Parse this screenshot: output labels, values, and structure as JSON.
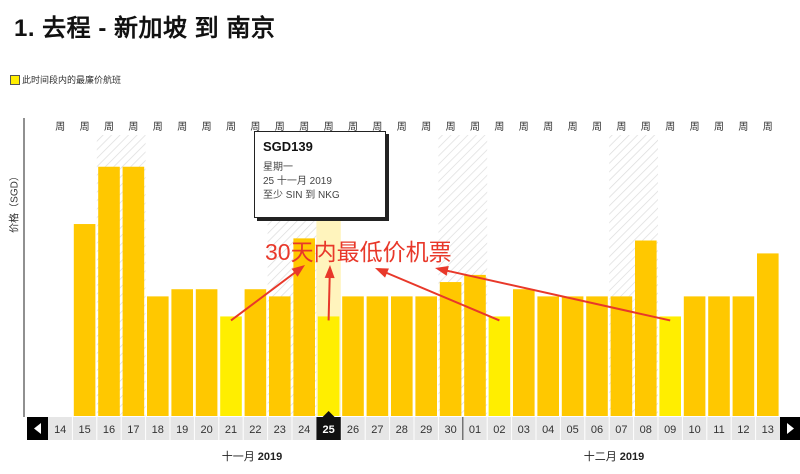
{
  "page": {
    "title": "1. 去程 - 新加坡 到 南京",
    "legend_label": "此时间段内的最廉价航班",
    "annotation": "30天内最低价机票",
    "colors": {
      "bar": "#ffc800",
      "bar_cheapest": "#ffee00",
      "weekend_highlight": "#fff4bd",
      "annotation": "#e8382a",
      "nav": "#000000"
    },
    "nav_icons": [
      "arrow-left-icon",
      "arrow-right-icon"
    ]
  },
  "tooltip": {
    "price": "SGD139",
    "weekday": "星期一",
    "date": "25 十一月 2019",
    "route": "至少 SIN 到 NKG"
  },
  "months": [
    {
      "name": "十一月",
      "year": "2019"
    },
    {
      "name": "十二月",
      "year": "2019"
    }
  ],
  "chart_data": {
    "type": "bar",
    "ylabel": "价格（SGD）",
    "week_label": "周",
    "categories": [
      "14",
      "15",
      "16",
      "17",
      "18",
      "19",
      "20",
      "21",
      "22",
      "23",
      "24",
      "25",
      "26",
      "27",
      "28",
      "29",
      "30",
      "01",
      "02",
      "03",
      "04",
      "05",
      "06",
      "07",
      "08",
      "09",
      "10",
      "11",
      "12",
      "13"
    ],
    "values": [
      null,
      268,
      348,
      348,
      167,
      177,
      177,
      139,
      177,
      167,
      248,
      139,
      167,
      167,
      167,
      167,
      187,
      197,
      139,
      177,
      167,
      167,
      167,
      167,
      245,
      139,
      167,
      167,
      167,
      227
    ],
    "cheapest": [
      false,
      false,
      false,
      false,
      false,
      false,
      false,
      true,
      false,
      false,
      false,
      true,
      false,
      false,
      false,
      false,
      false,
      false,
      true,
      false,
      false,
      false,
      false,
      false,
      false,
      true,
      false,
      false,
      false,
      false
    ],
    "selected_index": 11,
    "weekend_shading_ranges": [
      [
        2,
        3
      ],
      [
        9,
        10
      ],
      [
        16,
        17
      ],
      [
        23,
        24
      ]
    ],
    "highlight_index": 11,
    "ylim": [
      0,
      430
    ]
  }
}
